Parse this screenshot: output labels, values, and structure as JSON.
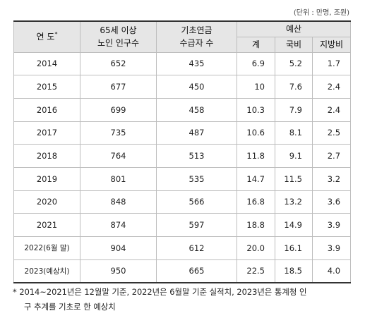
{
  "unit_label": "(단위 : 만명, 조원)",
  "headers": {
    "year": "연 도",
    "year_mark": "*",
    "elderly_line1": "65세 이상",
    "elderly_line2": "노인 인구수",
    "pension_line1": "기초연금",
    "pension_line2": "수급자 수",
    "budget": "예산",
    "budget_total": "계",
    "budget_national": "국비",
    "budget_local": "지방비"
  },
  "rows": [
    {
      "year": "2014",
      "elderly": "652",
      "recipients": "435",
      "total": "6.9",
      "national": "5.2",
      "local": "1.7"
    },
    {
      "year": "2015",
      "elderly": "677",
      "recipients": "450",
      "total": "10",
      "national": "7.6",
      "local": "2.4"
    },
    {
      "year": "2016",
      "elderly": "699",
      "recipients": "458",
      "total": "10.3",
      "national": "7.9",
      "local": "2.4"
    },
    {
      "year": "2017",
      "elderly": "735",
      "recipients": "487",
      "total": "10.6",
      "national": "8.1",
      "local": "2.5"
    },
    {
      "year": "2018",
      "elderly": "764",
      "recipients": "513",
      "total": "11.8",
      "national": "9.1",
      "local": "2.7"
    },
    {
      "year": "2019",
      "elderly": "801",
      "recipients": "535",
      "total": "14.7",
      "national": "11.5",
      "local": "3.2"
    },
    {
      "year": "2020",
      "elderly": "848",
      "recipients": "566",
      "total": "16.8",
      "national": "13.2",
      "local": "3.6"
    },
    {
      "year": "2021",
      "elderly": "874",
      "recipients": "597",
      "total": "18.8",
      "national": "14.9",
      "local": "3.9"
    },
    {
      "year": "2022(6월 말)",
      "elderly": "904",
      "recipients": "612",
      "total": "20.0",
      "national": "16.1",
      "local": "3.9"
    },
    {
      "year": "2023(예상치)",
      "elderly": "950",
      "recipients": "665",
      "total": "22.5",
      "national": "18.5",
      "local": "4.0"
    }
  ],
  "note": {
    "line1": "* 2014~2021년은 12월말 기준, 2022년은 6월말 기준 실적치, 2023년은 통계청 인",
    "line2": "구 추계를 기초로 한 예상치"
  }
}
